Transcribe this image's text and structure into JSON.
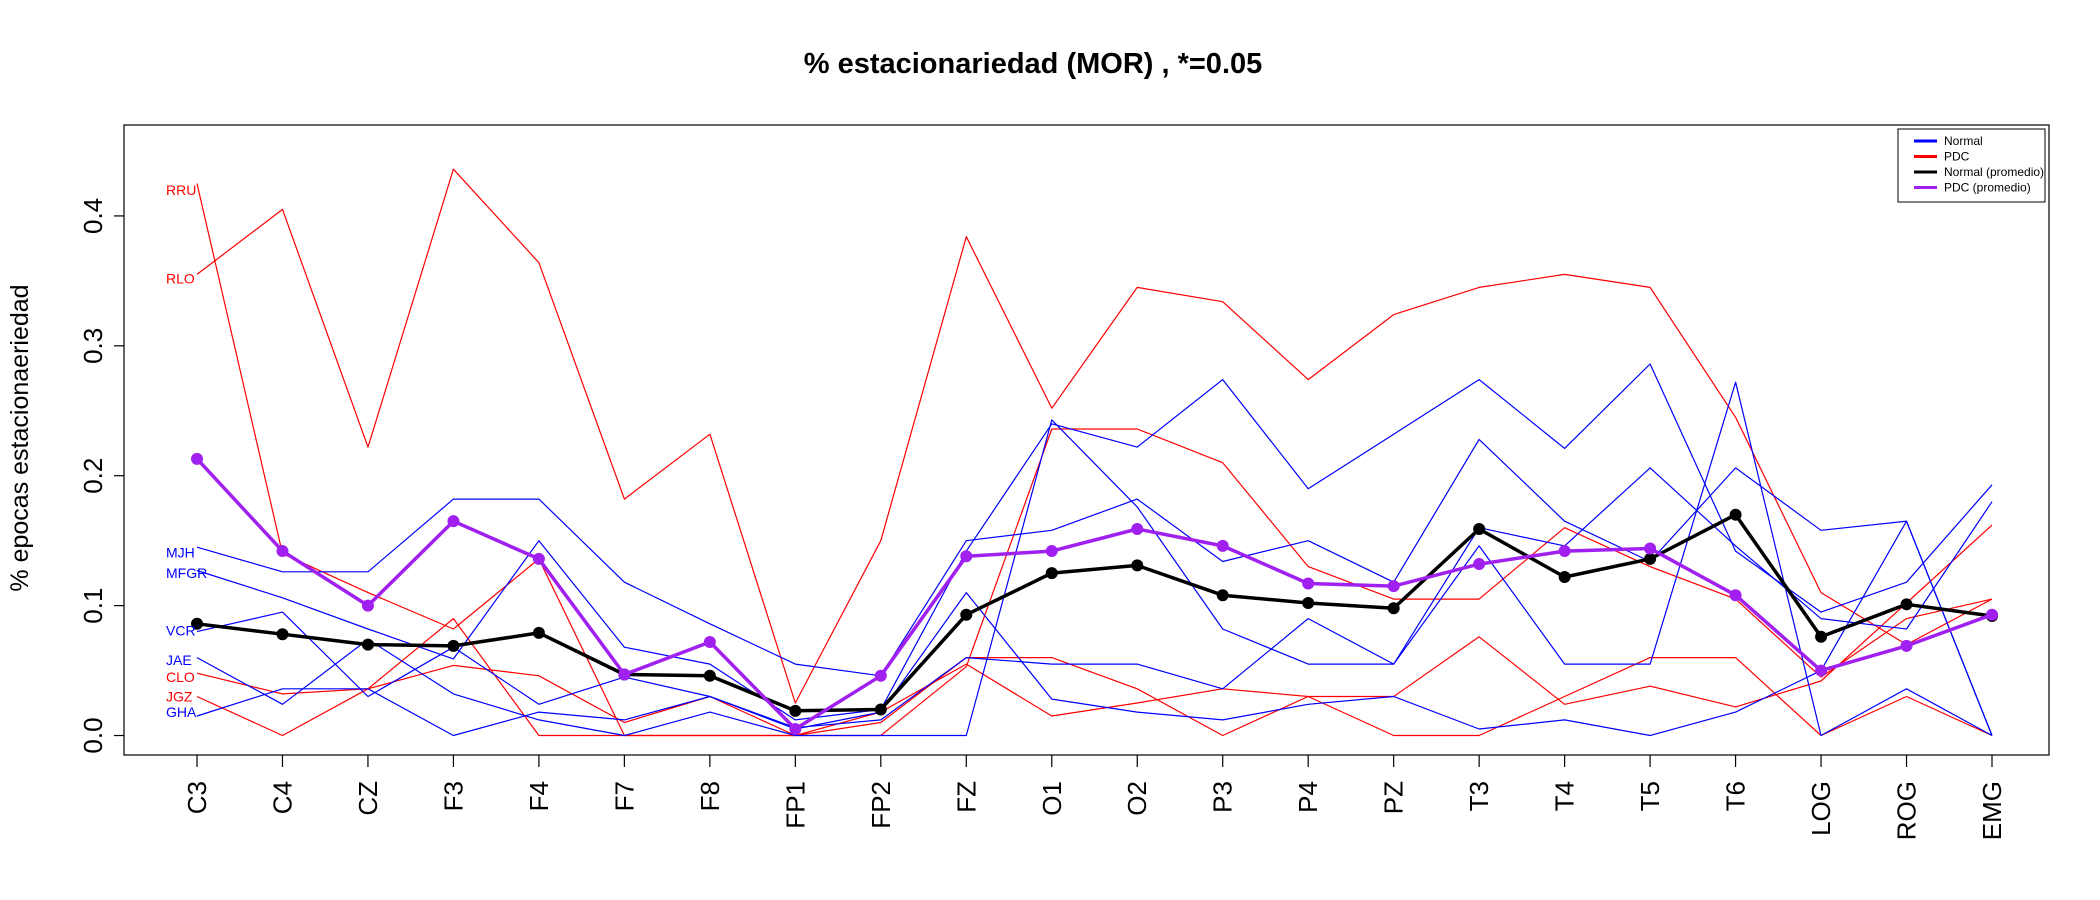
{
  "chart_data": {
    "type": "line",
    "title": "% estacionariedad (MOR) , *=0.05",
    "xlabel": "",
    "ylabel": "% epocas estacionaeriedad",
    "ylim": [
      -0.015,
      0.47
    ],
    "yticks": [
      0.0,
      0.1,
      0.2,
      0.3,
      0.4
    ],
    "ytick_labels": [
      "0.0",
      "0.1",
      "0.2",
      "0.3",
      "0.4"
    ],
    "grid": false,
    "legend_position": "top-right",
    "categories": [
      "C3",
      "C4",
      "CZ",
      "F3",
      "F4",
      "F7",
      "F8",
      "FP1",
      "FP2",
      "FZ",
      "O1",
      "O2",
      "P3",
      "P4",
      "PZ",
      "T3",
      "T4",
      "T5",
      "T6",
      "LOG",
      "ROG",
      "EMG"
    ],
    "colors": {
      "normal": "#0000ff",
      "pdc": "#ff0000",
      "normal_avg": "#000000",
      "pdc_avg": "#a020f0"
    },
    "legend": [
      {
        "label": "Normal",
        "color": "#0000ff"
      },
      {
        "label": "PDC",
        "color": "#ff0000"
      },
      {
        "label": "Normal (promedio)",
        "color": "#000000"
      },
      {
        "label": "PDC (promedio)",
        "color": "#a020f0"
      }
    ],
    "series": [
      {
        "label": "MJH",
        "group": "Normal",
        "color": "#0000ff",
        "values": [
          0.145,
          0.126,
          0.126,
          0.182,
          0.182,
          0.118,
          0.086,
          0.055,
          0.046,
          0.15,
          0.158,
          0.182,
          0.134,
          0.15,
          0.118,
          0.228,
          0.165,
          0.134,
          0.206,
          0.158,
          0.165,
          0.0
        ]
      },
      {
        "label": "MFGR",
        "group": "Normal",
        "color": "#0000ff",
        "values": [
          0.127,
          0.106,
          0.082,
          0.059,
          0.15,
          0.068,
          0.055,
          0.012,
          0.02,
          0.142,
          0.24,
          0.222,
          0.274,
          0.19,
          0.232,
          0.274,
          0.221,
          0.286,
          0.142,
          0.095,
          0.118,
          0.193
        ]
      },
      {
        "label": "VCR",
        "group": "Normal",
        "color": "#0000ff",
        "values": [
          0.08,
          0.095,
          0.03,
          0.068,
          0.024,
          0.045,
          0.03,
          0.005,
          0.018,
          0.11,
          0.028,
          0.018,
          0.012,
          0.024,
          0.03,
          0.005,
          0.012,
          0.0,
          0.018,
          0.05,
          0.165,
          0.0
        ]
      },
      {
        "label": "JAE",
        "group": "Normal",
        "color": "#0000ff",
        "values": [
          0.06,
          0.024,
          0.074,
          0.032,
          0.012,
          0.0,
          0.018,
          0.0,
          0.0,
          0.0,
          0.243,
          0.176,
          0.082,
          0.055,
          0.055,
          0.146,
          0.055,
          0.055,
          0.272,
          0.0,
          0.036,
          0.0
        ]
      },
      {
        "label": "GHA",
        "group": "Normal",
        "color": "#0000ff",
        "values": [
          0.015,
          0.036,
          0.036,
          0.0,
          0.018,
          0.012,
          0.03,
          0.006,
          0.012,
          0.06,
          0.055,
          0.055,
          0.036,
          0.09,
          0.055,
          0.16,
          0.146,
          0.206,
          0.146,
          0.09,
          0.082,
          0.18
        ]
      },
      {
        "label": "RRU",
        "group": "PDC",
        "color": "#ff0000",
        "values": [
          0.425,
          0.14,
          0.11,
          0.082,
          0.136,
          0.0,
          0.0,
          0.0,
          0.0,
          0.053,
          0.236,
          0.236,
          0.21,
          0.13,
          0.105,
          0.105,
          0.16,
          0.13,
          0.105,
          0.045,
          0.09,
          0.105
        ]
      },
      {
        "label": "RLO",
        "group": "PDC",
        "color": "#ff0000",
        "values": [
          0.355,
          0.405,
          0.222,
          0.436,
          0.364,
          0.182,
          0.232,
          0.025,
          0.15,
          0.384,
          0.252,
          0.345,
          0.334,
          0.274,
          0.324,
          0.345,
          0.355,
          0.345,
          0.245,
          0.11,
          0.07,
          0.105
        ]
      },
      {
        "label": "CLO",
        "group": "PDC",
        "color": "#ff0000",
        "values": [
          0.048,
          0.032,
          0.036,
          0.054,
          0.046,
          0.01,
          0.03,
          0.0,
          0.01,
          0.06,
          0.06,
          0.036,
          0.0,
          0.03,
          0.03,
          0.076,
          0.024,
          0.038,
          0.022,
          0.042,
          0.102,
          0.162
        ]
      },
      {
        "label": "JGZ",
        "group": "PDC",
        "color": "#ff0000",
        "values": [
          0.03,
          0.0,
          0.036,
          0.09,
          0.0,
          0.0,
          0.0,
          0.0,
          0.018,
          0.055,
          0.015,
          0.025,
          0.036,
          0.03,
          0.0,
          0.0,
          0.03,
          0.06,
          0.06,
          0.0,
          0.03,
          0.0
        ]
      },
      {
        "label": "Normal (promedio)",
        "group": "avg",
        "color": "#000000",
        "markers": true,
        "values": [
          0.086,
          0.078,
          0.07,
          0.069,
          0.079,
          0.047,
          0.046,
          0.019,
          0.02,
          0.093,
          0.125,
          0.131,
          0.108,
          0.102,
          0.098,
          0.159,
          0.122,
          0.136,
          0.17,
          0.076,
          0.101,
          0.092
        ]
      },
      {
        "label": "PDC (promedio)",
        "group": "avg",
        "color": "#a020f0",
        "markers": true,
        "values": [
          0.213,
          0.142,
          0.1,
          0.165,
          0.136,
          0.047,
          0.072,
          0.005,
          0.046,
          0.138,
          0.142,
          0.159,
          0.146,
          0.117,
          0.115,
          0.132,
          0.142,
          0.144,
          0.108,
          0.05,
          0.069,
          0.093
        ]
      }
    ],
    "subject_labels": [
      {
        "text": "RRU",
        "color": "#ff0000",
        "y": 0.42
      },
      {
        "text": "RLO",
        "color": "#ff0000",
        "y": 0.352
      },
      {
        "text": "MJH",
        "color": "#0000ff",
        "y": 0.141
      },
      {
        "text": "MFGR",
        "color": "#0000ff",
        "y": 0.125
      },
      {
        "text": "VCR",
        "color": "#0000ff",
        "y": 0.081
      },
      {
        "text": "JAE",
        "color": "#0000ff",
        "y": 0.058
      },
      {
        "text": "CLO",
        "color": "#ff0000",
        "y": 0.045
      },
      {
        "text": "JGZ",
        "color": "#ff0000",
        "y": 0.03
      },
      {
        "text": "GHA",
        "color": "#0000ff",
        "y": 0.018
      }
    ]
  }
}
